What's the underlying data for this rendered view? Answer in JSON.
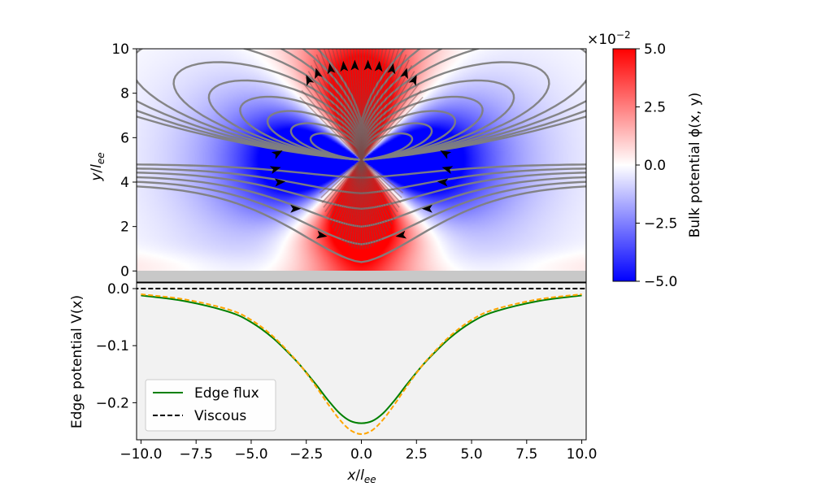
{
  "chart_data": [
    {
      "type": "heatmap",
      "xlim": [
        -10.2,
        10.2
      ],
      "ylim": [
        -0.5,
        10
      ],
      "ylabel": "y/l_ee",
      "yticks": [
        0,
        2,
        4,
        6,
        8,
        10
      ],
      "source_point": [
        0,
        5
      ],
      "colormap": [
        "#0000ff",
        "#ffffff",
        "#ff0000"
      ],
      "colorbar": {
        "label": "Bulk potential ϕ(x, y)",
        "range": [
          -5.0,
          5.0
        ],
        "ticks": [
          "5.0",
          "2.5",
          "0.0",
          "−2.5",
          "−5.0"
        ],
        "ticks_numeric": [
          5.0,
          2.5,
          0.0,
          -2.5,
          -5.0
        ],
        "multiplier": "×10",
        "multiplier_exp": "−2"
      },
      "streamline_color": "#808080",
      "arrow_color": "#000000"
    },
    {
      "type": "line",
      "xlim": [
        -10.2,
        10.2
      ],
      "ylim": [
        -0.265,
        0.01
      ],
      "xlabel": "x/l_ee",
      "ylabel": "Edge potential V(x)",
      "xticks": [
        "−10.0",
        "−7.5",
        "−5.0",
        "−2.5",
        "0.0",
        "2.5",
        "5.0",
        "7.5",
        "10.0"
      ],
      "xticks_numeric": [
        -10,
        -7.5,
        -5,
        -2.5,
        0,
        2.5,
        5,
        7.5,
        10
      ],
      "yticks": [
        "0.0",
        "−0.1",
        "−0.2"
      ],
      "yticks_numeric": [
        0.0,
        -0.1,
        -0.2
      ],
      "legend_position": "lower-left",
      "series": [
        {
          "name": "Edge flux",
          "color": "#008000",
          "style": "solid",
          "x": [
            -10,
            -8,
            -6,
            -5,
            -4,
            -3,
            -2.5,
            -2,
            -1.5,
            -1,
            -0.5,
            0,
            0.5,
            1,
            1.5,
            2,
            2.5,
            3,
            4,
            5,
            6,
            8,
            10
          ],
          "y": [
            -0.012,
            -0.022,
            -0.041,
            -0.059,
            -0.087,
            -0.125,
            -0.147,
            -0.171,
            -0.196,
            -0.218,
            -0.232,
            -0.236,
            -0.232,
            -0.218,
            -0.196,
            -0.171,
            -0.147,
            -0.125,
            -0.087,
            -0.059,
            -0.041,
            -0.022,
            -0.012
          ]
        },
        {
          "name": "Viscous",
          "color": "#000000",
          "style": "dashed",
          "x": [
            -10,
            10
          ],
          "y": [
            0,
            0
          ]
        },
        {
          "name": "",
          "color": "#ffa500",
          "style": "dashed",
          "x": [
            -10,
            -8,
            -6,
            -5,
            -4,
            -3,
            -2.5,
            -2,
            -1.5,
            -1,
            -0.5,
            0,
            0.5,
            1,
            1.5,
            2,
            2.5,
            3,
            4,
            5,
            6,
            8,
            10
          ],
          "y": [
            -0.01,
            -0.019,
            -0.037,
            -0.055,
            -0.084,
            -0.124,
            -0.148,
            -0.175,
            -0.203,
            -0.229,
            -0.248,
            -0.255,
            -0.248,
            -0.229,
            -0.203,
            -0.175,
            -0.148,
            -0.124,
            -0.084,
            -0.055,
            -0.037,
            -0.019,
            -0.01
          ]
        }
      ]
    }
  ]
}
